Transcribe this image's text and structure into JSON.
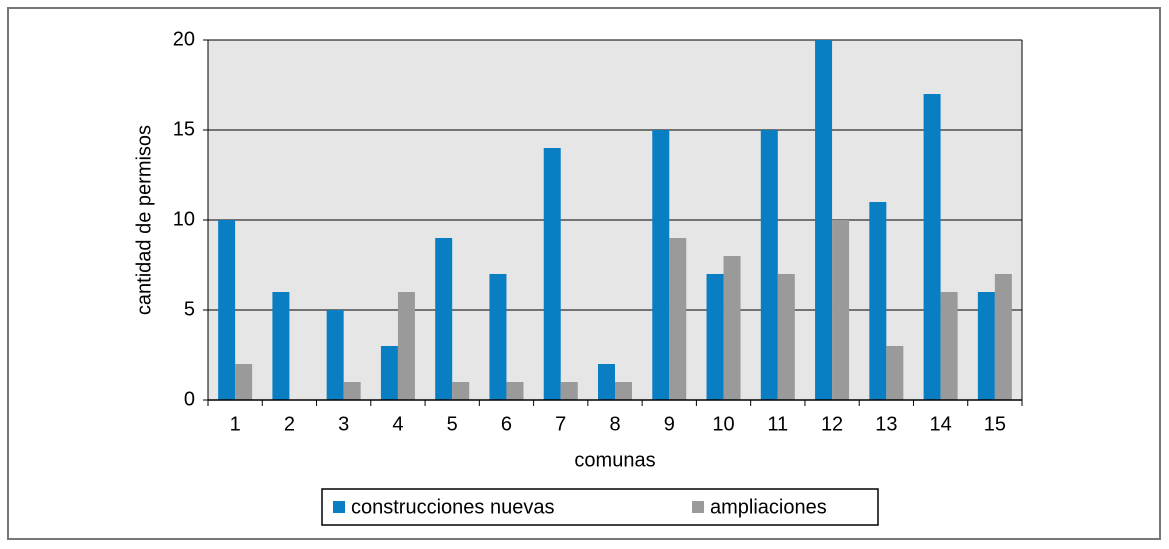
{
  "chart_data": {
    "type": "bar",
    "categories": [
      "1",
      "2",
      "3",
      "4",
      "5",
      "6",
      "7",
      "8",
      "9",
      "10",
      "11",
      "12",
      "13",
      "14",
      "15"
    ],
    "series": [
      {
        "name": "construcciones nuevas",
        "color": "#0a7ec2",
        "values": [
          10,
          6,
          5,
          3,
          9,
          7,
          14,
          2,
          15,
          7,
          15,
          20,
          11,
          17,
          6
        ]
      },
      {
        "name": "ampliaciones",
        "color": "#9a9a9a",
        "values": [
          2,
          0,
          1,
          6,
          1,
          1,
          1,
          1,
          9,
          8,
          7,
          10,
          3,
          6,
          7
        ]
      }
    ],
    "x_label": "comunas",
    "y_label": "cantidad de permisos",
    "ylim": [
      0,
      20
    ],
    "yticks": [
      0,
      5,
      10,
      15,
      20
    ],
    "grid": true,
    "legend": "bottom"
  }
}
